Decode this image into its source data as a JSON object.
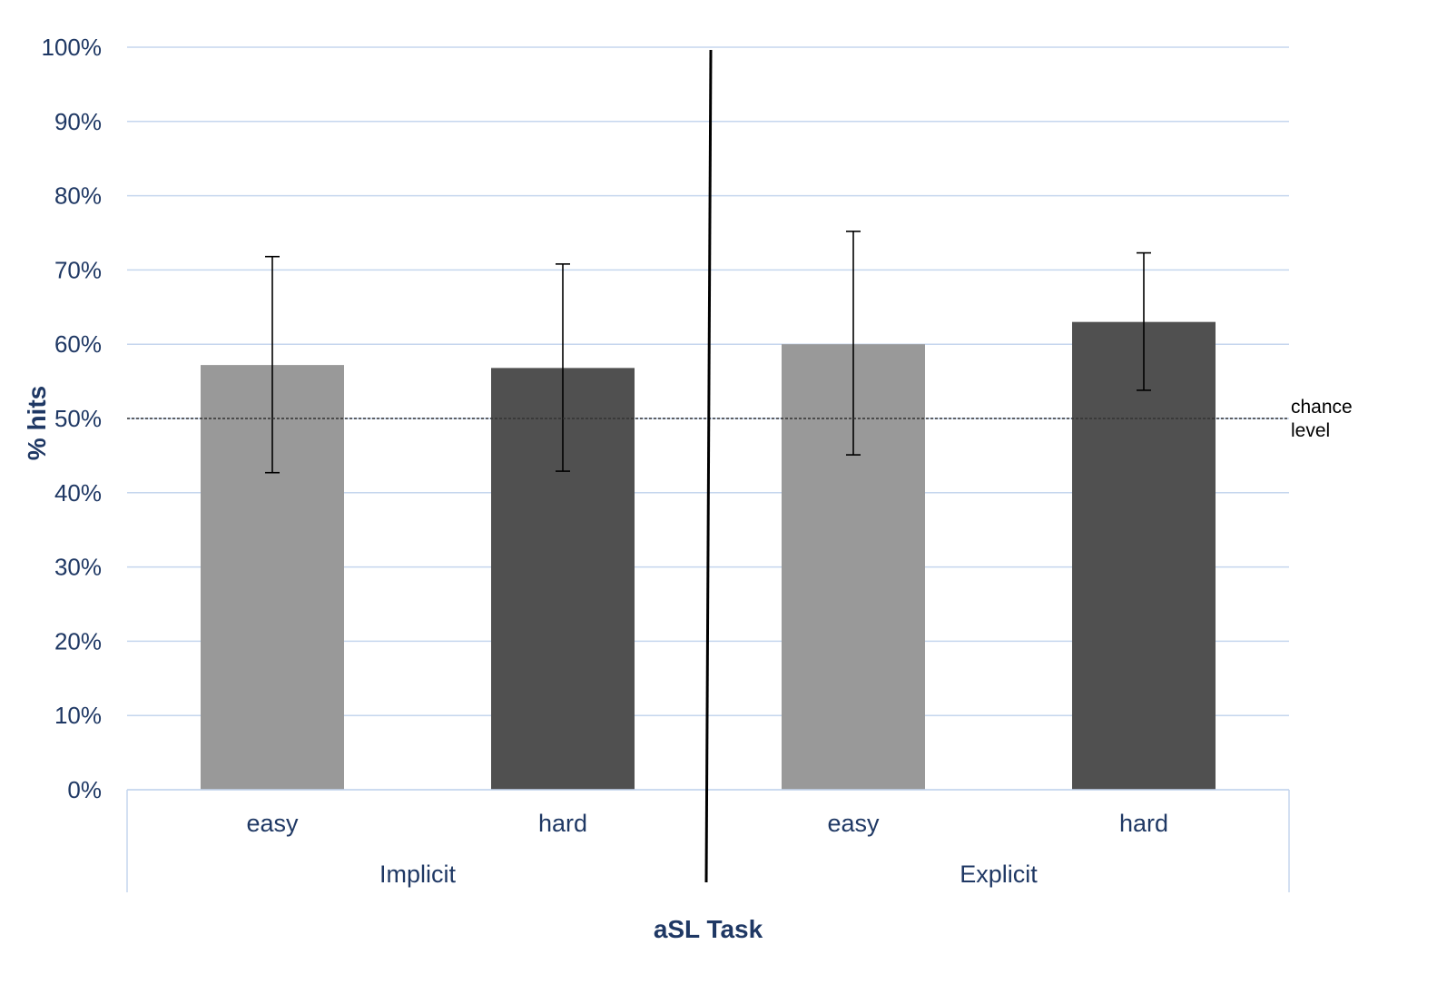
{
  "chart_data": {
    "type": "bar",
    "ylabel": "% hits",
    "xlabel": "aSL Task",
    "ylim": [
      0,
      100
    ],
    "yticks": [
      0,
      10,
      20,
      30,
      40,
      50,
      60,
      70,
      80,
      90,
      100
    ],
    "ytick_suffix": "%",
    "grid": true,
    "groups": [
      {
        "label": "Implicit",
        "categories": [
          "easy",
          "hard"
        ]
      },
      {
        "label": "Explicit",
        "categories": [
          "easy",
          "hard"
        ]
      }
    ],
    "bars": [
      {
        "group": "Implicit",
        "category": "easy",
        "value": 57.2,
        "err_low": 42.7,
        "err_high": 71.8,
        "color": "#999999"
      },
      {
        "group": "Implicit",
        "category": "hard",
        "value": 56.8,
        "err_low": 42.9,
        "err_high": 70.8,
        "color": "#505050"
      },
      {
        "group": "Explicit",
        "category": "easy",
        "value": 60.0,
        "err_low": 45.1,
        "err_high": 75.2,
        "color": "#999999"
      },
      {
        "group": "Explicit",
        "category": "hard",
        "value": 63.0,
        "err_low": 53.8,
        "err_high": 72.3,
        "color": "#505050"
      }
    ],
    "reference_line": {
      "value": 50,
      "label_lines": [
        "chance",
        "level"
      ],
      "style": "dotted"
    },
    "colors": {
      "text": "#1f3864",
      "grid": "#c5d6ee",
      "light_bar": "#999999",
      "dark_bar": "#505050"
    }
  }
}
